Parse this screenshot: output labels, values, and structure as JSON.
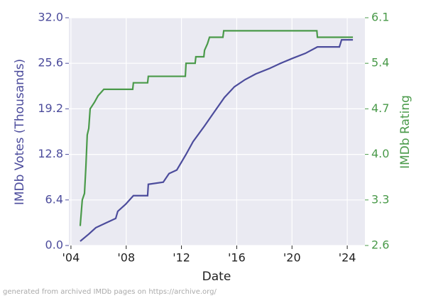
{
  "chart_data": {
    "type": "line",
    "xlabel": "Date",
    "ylabel": "IMDb Votes (Thousands)",
    "y2label": "IMDb Rating",
    "footer": "generated from archived IMDb pages on https://archive.org/",
    "xlim": [
      2003.85,
      2025.28
    ],
    "xticks": [
      {
        "value": 2004,
        "label": "'04"
      },
      {
        "value": 2008,
        "label": "'08"
      },
      {
        "value": 2012,
        "label": "'12"
      },
      {
        "value": 2016,
        "label": "'16"
      },
      {
        "value": 2020,
        "label": "'20"
      },
      {
        "value": 2024,
        "label": "'24"
      }
    ],
    "ylim": [
      0,
      32
    ],
    "yticks": [
      {
        "value": 0,
        "label": "0.0"
      },
      6.4,
      12.8,
      19.2,
      25.6,
      {
        "value": 32,
        "label": "32.0"
      }
    ],
    "y2lim": [
      2.6,
      6.1
    ],
    "y2ticks": [
      2.6,
      3.3,
      {
        "value": 4,
        "label": "4.0"
      },
      4.7,
      5.4,
      6.1
    ],
    "grid": true,
    "background": "#eaeaf2",
    "series": [
      {
        "name": "IMDb Votes (Thousands)",
        "color": "#4c4c9c",
        "x": [
          2004.67,
          2005.29,
          2005.8,
          2006.57,
          2007.24,
          2007.39,
          2007.96,
          2008.52,
          2009.55,
          2009.6,
          2010.68,
          2011.1,
          2011.66,
          2012.33,
          2012.84,
          2013.67,
          2014.28,
          2015.11,
          2015.83,
          2016.6,
          2017.37,
          2018.4,
          2019.17,
          2020.04,
          2020.97,
          2021.84,
          2023.43,
          2023.59,
          2024.41
        ],
        "values": [
          0.6,
          1.6,
          2.5,
          3.2,
          3.8,
          4.8,
          5.8,
          7.0,
          7.0,
          8.6,
          8.9,
          10.1,
          10.6,
          12.8,
          14.6,
          16.8,
          18.5,
          20.8,
          22.3,
          23.3,
          24.1,
          24.9,
          25.6,
          26.3,
          27.0,
          27.9,
          27.9,
          28.9,
          28.9
        ]
      },
      {
        "name": "IMDb Rating",
        "color": "#4a9a4a",
        "axis": "y2",
        "x": [
          2004.67,
          2004.82,
          2004.98,
          2005.08,
          2005.18,
          2005.29,
          2005.39,
          2005.7,
          2005.96,
          2006.38,
          2008.47,
          2008.52,
          2009.55,
          2009.6,
          2012.28,
          2012.33,
          2012.99,
          2013.04,
          2013.62,
          2013.67,
          2013.88,
          2014.03,
          2015.0,
          2015.06,
          2021.8,
          2021.84,
          2024.41
        ],
        "values": [
          2.9,
          3.3,
          3.4,
          3.8,
          4.3,
          4.4,
          4.7,
          4.8,
          4.9,
          5.0,
          5.0,
          5.1,
          5.1,
          5.2,
          5.2,
          5.4,
          5.4,
          5.5,
          5.5,
          5.6,
          5.7,
          5.8,
          5.8,
          5.9,
          5.9,
          5.8,
          5.8
        ]
      }
    ]
  }
}
